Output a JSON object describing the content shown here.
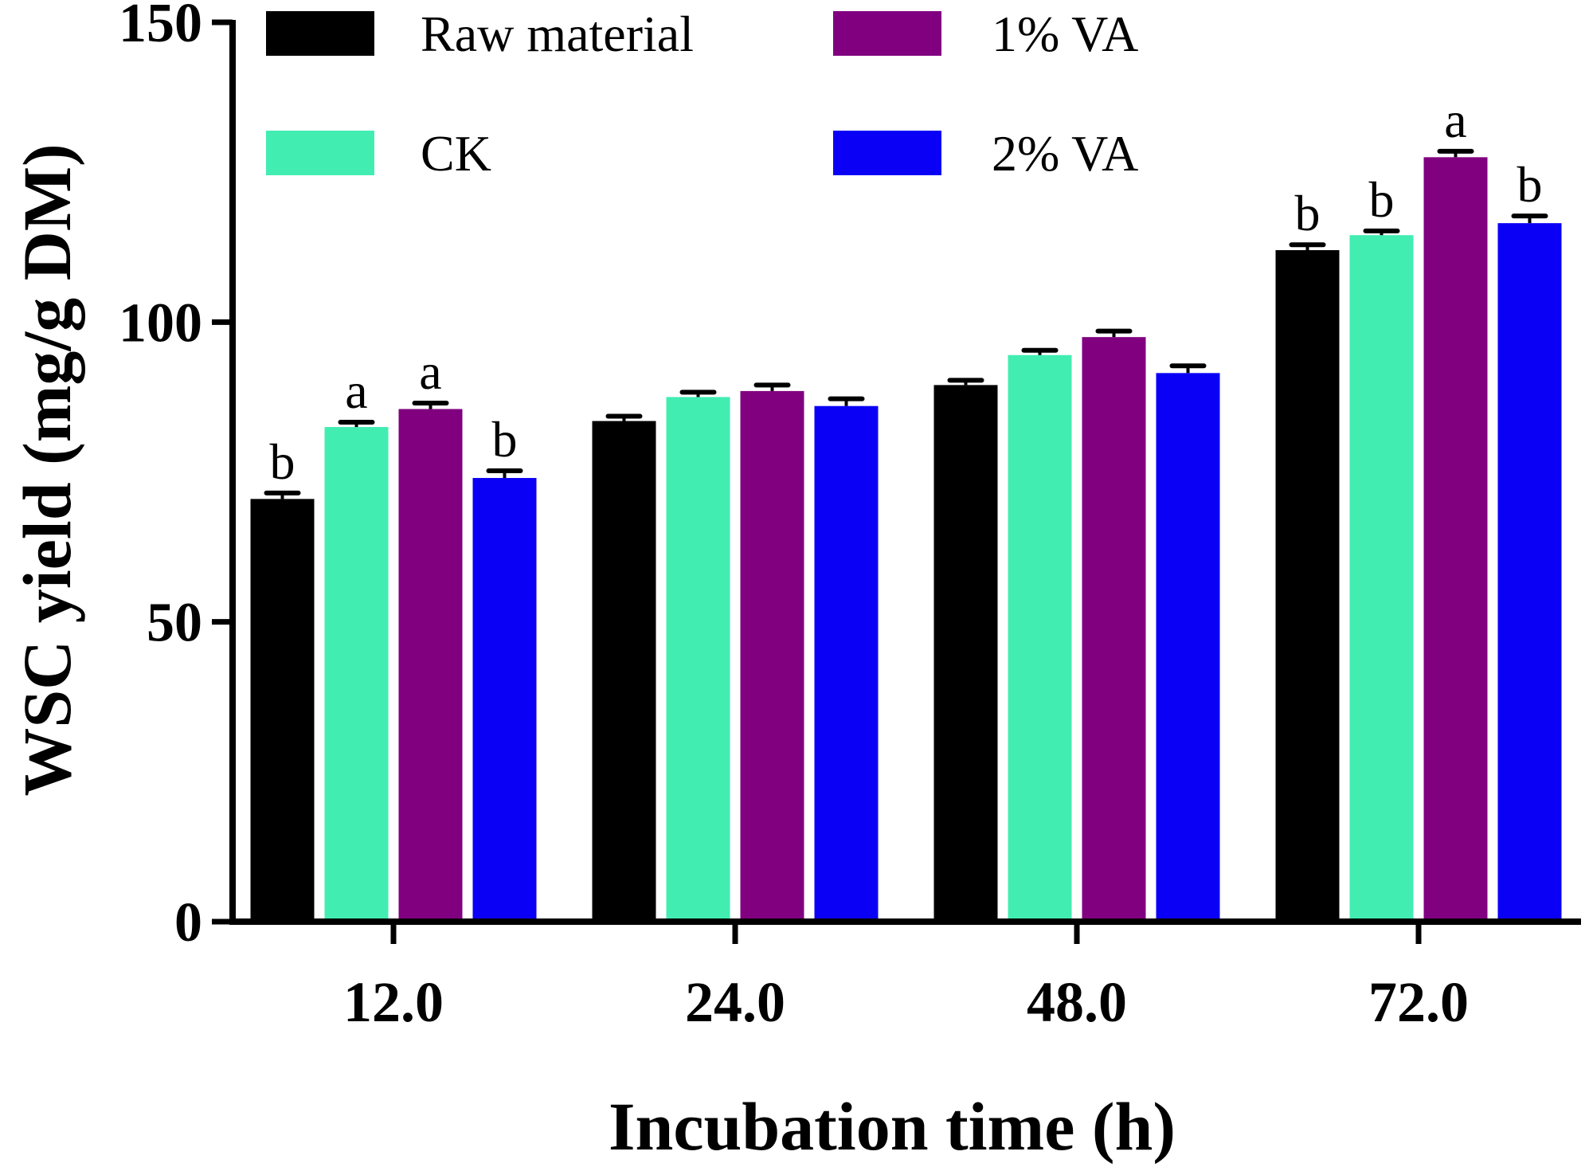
{
  "chart_data": {
    "type": "bar",
    "title": "",
    "xlabel": "Incubation time (h)",
    "ylabel": "WSC yield (mg/g DM)",
    "ylim": [
      0,
      150
    ],
    "yticks": [
      0,
      50,
      100,
      150
    ],
    "categories": [
      "12.0",
      "24.0",
      "48.0",
      "72.0"
    ],
    "series": [
      {
        "name": "Raw material",
        "color": "#000000",
        "values": [
          70.5,
          83.5,
          89.5,
          112.0
        ],
        "errors": [
          1.0,
          0.8,
          0.8,
          0.9
        ],
        "labels": [
          "b",
          "",
          "",
          "b"
        ]
      },
      {
        "name": "CK",
        "color": "#42EDB2",
        "values": [
          82.5,
          87.5,
          94.5,
          114.5
        ],
        "errors": [
          0.8,
          0.8,
          0.8,
          0.7
        ],
        "labels": [
          "a",
          "",
          "",
          "b"
        ]
      },
      {
        "name": "1% VA",
        "color": "#800080",
        "values": [
          85.5,
          88.5,
          97.5,
          127.5
        ],
        "errors": [
          1.0,
          1.0,
          1.0,
          1.0
        ],
        "labels": [
          "a",
          "",
          "",
          "a"
        ]
      },
      {
        "name": "2% VA",
        "color": "#0A00F5",
        "values": [
          74.0,
          86.0,
          91.5,
          116.5
        ],
        "errors": [
          1.2,
          1.2,
          1.2,
          1.2
        ],
        "labels": [
          "b",
          "",
          "",
          "b"
        ]
      }
    ],
    "legend": {
      "position": "top-left",
      "columns": 2,
      "order": [
        "Raw material",
        "1% VA",
        "CK",
        "2% VA"
      ]
    },
    "grid": false
  }
}
